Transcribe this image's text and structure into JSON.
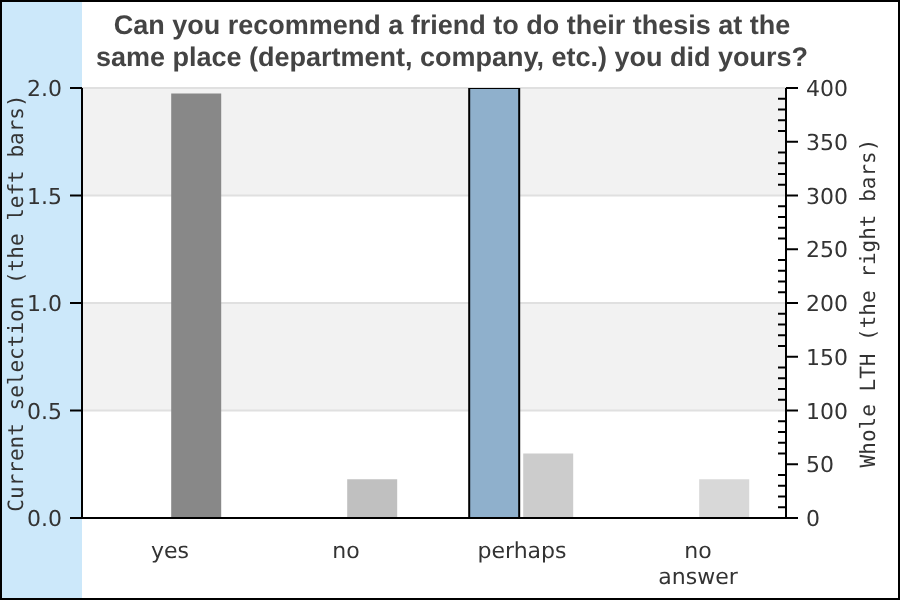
{
  "chart_data": {
    "type": "bar",
    "title": "Can you recommend a friend to do their thesis at the same place (department, company, etc.) you did yours?",
    "ylabel": "Current selection (the left bars)",
    "y2label": "Whole LTH (the right bars)",
    "categories": [
      "yes",
      "no",
      "perhaps",
      [
        "no",
        "answer"
      ]
    ],
    "series": [
      {
        "color": "#8fb0cc",
        "values": [
          0,
          0,
          2,
          0
        ]
      },
      {
        "axis": "y2",
        "colors": [
          "#888888",
          "#c0c0c0",
          "#cccccc",
          "#d8d8d8"
        ],
        "values": [
          395,
          36,
          60,
          36
        ]
      }
    ],
    "ylim": [
      0,
      2
    ],
    "yticks": [
      {
        "value": 0,
        "label": "0.0"
      },
      {
        "value": 0.5,
        "label": "0.5"
      },
      {
        "value": 1,
        "label": "1.0"
      },
      {
        "value": 1.5,
        "label": "1.5"
      },
      {
        "value": 2,
        "label": "2.0"
      }
    ],
    "y2lim": [
      0,
      400
    ],
    "y2ticks": [
      0,
      {
        "value": 10,
        "label": null
      },
      {
        "value": 20,
        "label": null
      },
      {
        "value": 30,
        "label": null
      },
      {
        "value": 40,
        "label": null
      },
      50,
      {
        "value": 60,
        "label": null
      },
      {
        "value": 70,
        "label": null
      },
      {
        "value": 80,
        "label": null
      },
      {
        "value": 90,
        "label": null
      },
      100,
      {
        "value": 110,
        "label": null
      },
      {
        "value": 120,
        "label": null
      },
      {
        "value": 130,
        "label": null
      },
      {
        "value": 140,
        "label": null
      },
      150,
      {
        "value": 160,
        "label": null
      },
      {
        "value": 170,
        "label": null
      },
      {
        "value": 180,
        "label": null
      },
      {
        "value": 190,
        "label": null
      },
      200,
      {
        "value": 210,
        "label": null
      },
      {
        "value": 220,
        "label": null
      },
      {
        "value": 230,
        "label": null
      },
      {
        "value": 240,
        "label": null
      },
      250,
      {
        "value": 260,
        "label": null
      },
      {
        "value": 270,
        "label": null
      },
      {
        "value": 280,
        "label": null
      },
      {
        "value": 290,
        "label": null
      },
      300,
      {
        "value": 310,
        "label": null
      },
      {
        "value": 320,
        "label": null
      },
      {
        "value": 330,
        "label": null
      },
      {
        "value": 340,
        "label": null
      },
      350,
      {
        "value": 360,
        "label": null
      },
      {
        "value": 370,
        "label": null
      },
      {
        "value": 380,
        "label": null
      },
      {
        "value": 390,
        "label": null
      },
      400
    ],
    "grid": "y"
  }
}
